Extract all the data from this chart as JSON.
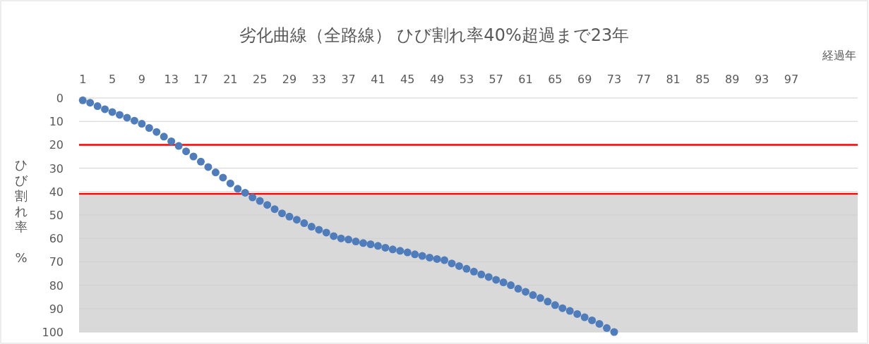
{
  "chart_data": {
    "type": "scatter",
    "title": "劣化曲線（全路線） ひび割れ率40%超過まで23年",
    "xlabel": "経過年",
    "ylabel": "ひび割れ率　%",
    "x": [
      1,
      2,
      3,
      4,
      5,
      6,
      7,
      8,
      9,
      10,
      11,
      12,
      13,
      14,
      15,
      16,
      17,
      18,
      19,
      20,
      21,
      22,
      23,
      24,
      25,
      26,
      27,
      28,
      29,
      30,
      31,
      32,
      33,
      34,
      35,
      36,
      37,
      38,
      39,
      40,
      41,
      42,
      43,
      44,
      45,
      46,
      47,
      48,
      49,
      50,
      51,
      52,
      53,
      54,
      55,
      56,
      57,
      58,
      59,
      60,
      61,
      62,
      63,
      64,
      65,
      66,
      67,
      68,
      69,
      70,
      71,
      72,
      73
    ],
    "series": [
      {
        "color": "#4f7dbb",
        "values": [
          1,
          2,
          3.5,
          4.8,
          6,
          7.2,
          8.4,
          9.7,
          11,
          12.8,
          14.5,
          16.5,
          18.5,
          20.5,
          22.8,
          25,
          27.2,
          29.5,
          31.8,
          34,
          36.5,
          38.8,
          40.5,
          42.5,
          44,
          45.7,
          47.5,
          49.3,
          50.7,
          52,
          53.5,
          55,
          56.3,
          57.5,
          59,
          60,
          60.5,
          61.3,
          62,
          62.5,
          63.2,
          64,
          64.7,
          65.3,
          66,
          66.8,
          67.5,
          68.2,
          68.8,
          69.3,
          70.7,
          71.8,
          73,
          74.2,
          75.4,
          76.5,
          77.7,
          78.8,
          80,
          81.5,
          82.8,
          84.2,
          85.5,
          87,
          88.5,
          89.8,
          91,
          92.3,
          93.7,
          95,
          96.5,
          98.3,
          100
        ]
      }
    ],
    "xlim": [
      0.5,
      106
    ],
    "xticks": [
      1,
      5,
      9,
      13,
      17,
      21,
      25,
      29,
      33,
      37,
      41,
      45,
      49,
      53,
      57,
      61,
      65,
      69,
      73,
      77,
      81,
      85,
      89,
      93,
      97
    ],
    "ylim": [
      100,
      0
    ],
    "yticks": [
      0,
      10,
      20,
      30,
      40,
      50,
      60,
      70,
      80,
      90,
      100
    ],
    "ref_lines": [
      {
        "axis": "y",
        "value": 20,
        "color": "#ff0000"
      },
      {
        "axis": "y",
        "value": 41,
        "color": "#ff0000"
      }
    ],
    "bands": [
      {
        "axis": "y",
        "from": 41.5,
        "to": 100,
        "color": "#d9d9d9"
      }
    ],
    "grid": "y",
    "marker": "circle"
  }
}
